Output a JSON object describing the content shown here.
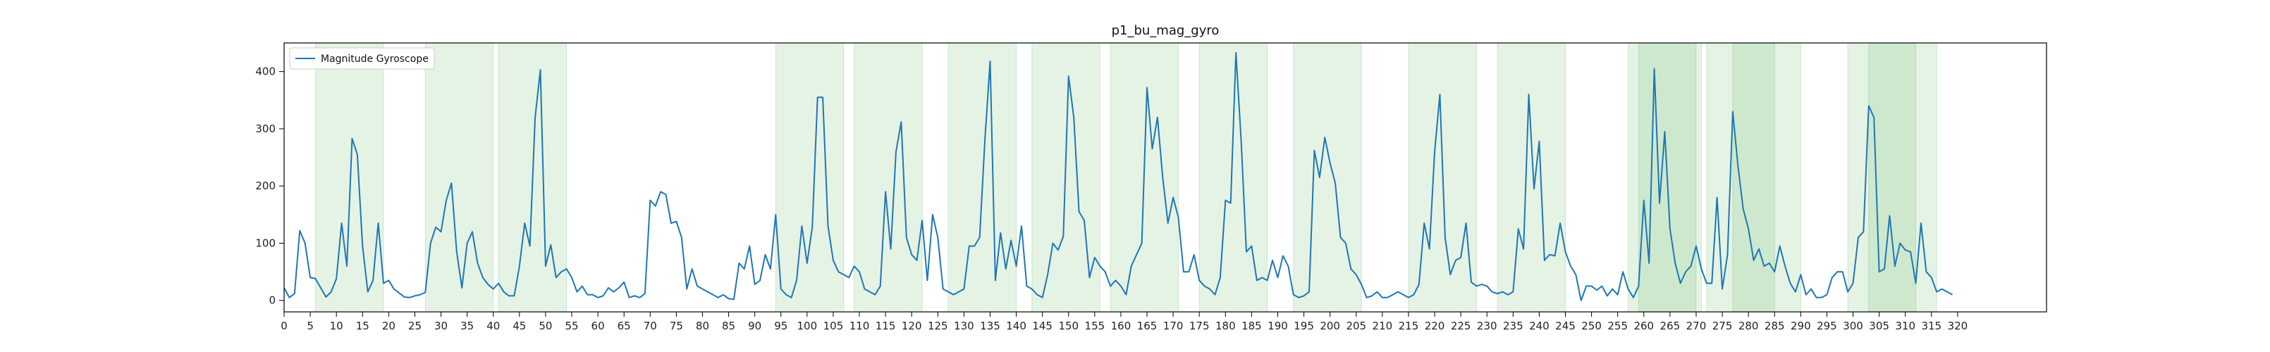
{
  "chart_data": {
    "type": "line",
    "title": "p1_bu_mag_gyro",
    "xlabel": "",
    "ylabel": "",
    "xlim": [
      0,
      337
    ],
    "ylim": [
      -20,
      450
    ],
    "xticks": [
      0,
      5,
      10,
      15,
      20,
      25,
      30,
      35,
      40,
      45,
      50,
      55,
      60,
      65,
      70,
      75,
      80,
      85,
      90,
      95,
      100,
      105,
      110,
      115,
      120,
      125,
      130,
      135,
      140,
      145,
      150,
      155,
      160,
      165,
      170,
      175,
      180,
      185,
      190,
      195,
      200,
      205,
      210,
      215,
      220,
      225,
      230,
      235,
      240,
      245,
      250,
      255,
      260,
      265,
      270,
      275,
      280,
      285,
      290,
      295,
      300,
      305,
      310,
      315,
      320
    ],
    "yticks": [
      0,
      100,
      200,
      300,
      400
    ],
    "grid": false,
    "legend": {
      "position": "top-left"
    },
    "series": [
      {
        "name": "Magnitude Gyroscope",
        "color": "#1f77b4",
        "values": [
          22,
          5,
          12,
          122,
          100,
          40,
          38,
          22,
          6,
          15,
          38,
          135,
          60,
          283,
          255,
          95,
          15,
          35,
          135,
          30,
          35,
          20,
          13,
          6,
          5,
          8,
          10,
          14,
          100,
          128,
          120,
          175,
          205,
          85,
          22,
          100,
          120,
          65,
          40,
          28,
          20,
          30,
          15,
          8,
          8,
          60,
          135,
          95,
          320,
          403,
          60,
          97,
          40,
          50,
          55,
          40,
          15,
          25,
          10,
          10,
          5,
          8,
          22,
          15,
          22,
          32,
          5,
          8,
          5,
          12,
          175,
          165,
          190,
          185,
          135,
          138,
          110,
          20,
          55,
          25,
          20,
          15,
          10,
          5,
          10,
          3,
          2,
          65,
          55,
          95,
          28,
          35,
          80,
          55,
          150,
          20,
          10,
          5,
          35,
          130,
          65,
          128,
          355,
          355,
          130,
          70,
          50,
          45,
          40,
          60,
          50,
          20,
          15,
          10,
          25,
          190,
          90,
          260,
          312,
          110,
          80,
          70,
          140,
          35,
          150,
          110,
          20,
          15,
          10,
          15,
          20,
          95,
          95,
          110,
          280,
          418,
          35,
          118,
          55,
          105,
          60,
          130,
          25,
          20,
          10,
          5,
          45,
          100,
          88,
          112,
          392,
          320,
          155,
          140,
          40,
          75,
          60,
          50,
          25,
          35,
          25,
          10,
          60,
          80,
          100,
          372,
          265,
          320,
          215,
          135,
          180,
          145,
          50,
          50,
          80,
          35,
          25,
          20,
          10,
          40,
          175,
          170,
          433,
          280,
          85,
          95,
          35,
          40,
          35,
          70,
          40,
          78,
          60,
          10,
          5,
          8,
          15,
          262,
          215,
          285,
          240,
          205,
          110,
          100,
          55,
          45,
          28,
          5,
          8,
          15,
          5,
          5,
          10,
          15,
          10,
          5,
          10,
          28,
          135,
          90,
          260,
          360,
          110,
          45,
          70,
          75,
          135,
          32,
          25,
          28,
          25,
          15,
          12,
          15,
          10,
          15,
          125,
          90,
          360,
          195,
          278,
          70,
          80,
          78,
          135,
          85,
          60,
          45,
          0,
          25,
          25,
          18,
          25,
          8,
          20,
          10,
          50,
          20,
          5,
          25,
          175,
          65,
          405,
          170,
          295,
          125,
          65,
          30,
          50,
          60,
          95,
          55,
          30,
          30,
          180,
          20,
          80,
          330,
          235,
          160,
          125,
          70,
          90,
          60,
          65,
          50,
          95,
          60,
          30,
          15,
          45,
          10,
          20,
          5,
          5,
          10,
          40,
          50,
          50,
          15,
          30,
          110,
          120,
          340,
          320,
          50,
          55,
          148,
          60,
          100,
          88,
          85,
          30,
          135,
          50,
          40,
          15,
          20,
          15,
          10
        ]
      }
    ],
    "shaded_regions": [
      [
        6,
        19
      ],
      [
        27,
        40
      ],
      [
        41,
        54
      ],
      [
        94,
        107
      ],
      [
        109,
        122
      ],
      [
        127,
        140
      ],
      [
        143,
        156
      ],
      [
        158,
        171
      ],
      [
        175,
        188
      ],
      [
        193,
        206
      ],
      [
        215,
        228
      ],
      [
        232,
        245
      ],
      [
        257,
        270
      ],
      [
        259,
        271
      ],
      [
        272,
        285
      ],
      [
        277,
        290
      ],
      [
        299,
        312
      ],
      [
        303,
        316
      ]
    ],
    "shade_color": "#2ca02c",
    "shade_opacity": 0.12
  }
}
